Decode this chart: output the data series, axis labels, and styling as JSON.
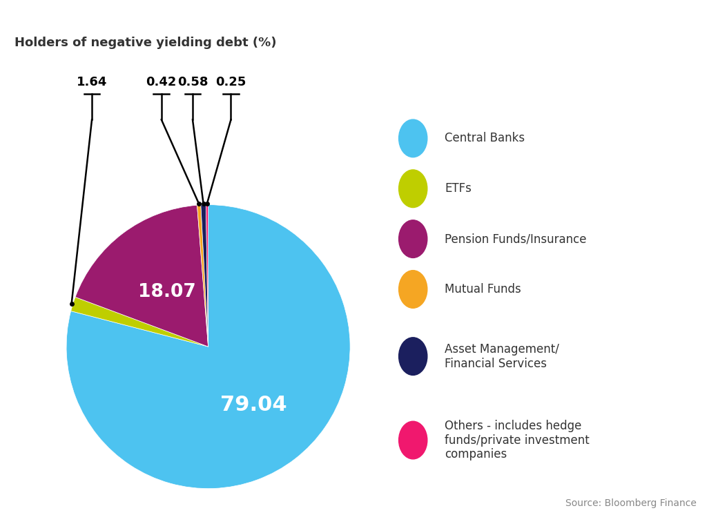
{
  "title": "Holders of negative yielding debt (%)",
  "values": [
    79.04,
    1.64,
    18.07,
    0.42,
    0.58,
    0.25
  ],
  "colors": [
    "#4DC3F0",
    "#BFCE00",
    "#9B1B6E",
    "#F5A623",
    "#1B1F5E",
    "#F0186E"
  ],
  "legend_labels": [
    "Central Banks",
    "ETFs",
    "Pension Funds/Insurance",
    "Mutual Funds",
    "Asset Management/\nFinancial Services",
    "Others - includes hedge\nfunds/private investment\ncompanies"
  ],
  "source_text": "Source: Bloomberg Finance",
  "background_color": "#ffffff",
  "startangle": 90,
  "annotated_indices": [
    1,
    3,
    4,
    5
  ],
  "annotated_values": [
    "1.64",
    "0.42",
    "0.58",
    "0.25"
  ],
  "inner_text": [
    {
      "index": 0,
      "text": "79.04",
      "r": 0.52,
      "fontsize": 22,
      "color": "white"
    },
    {
      "index": 2,
      "text": "18.07",
      "r": 0.48,
      "fontsize": 19,
      "color": "white"
    }
  ]
}
